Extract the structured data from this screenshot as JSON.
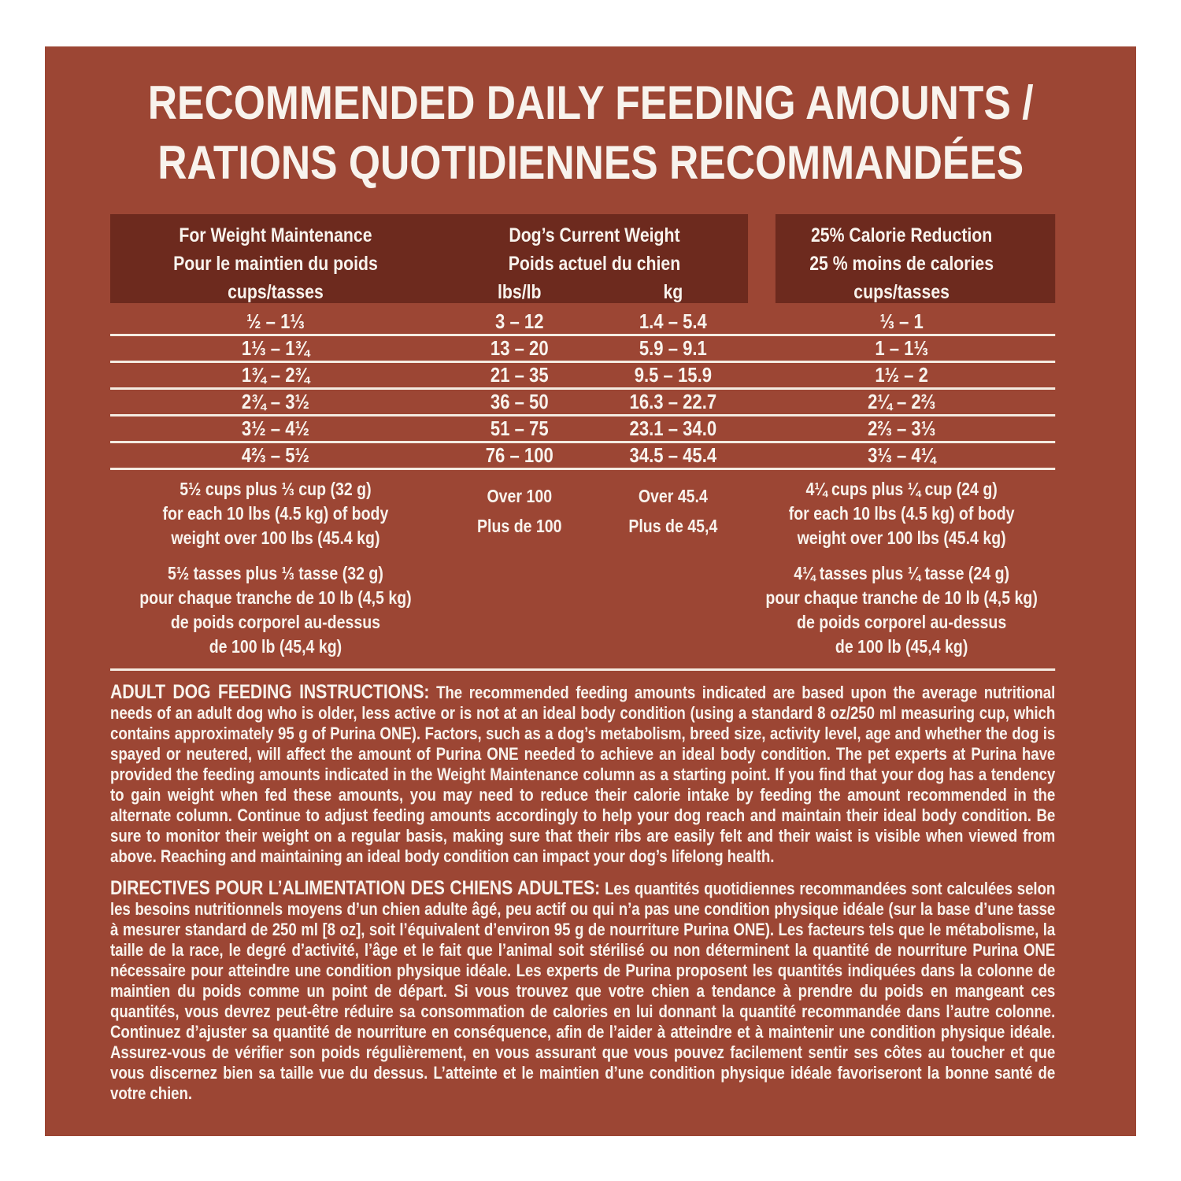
{
  "colors": {
    "page_bg": "#FFFFFF",
    "panel_bg": "#9C4634",
    "header_band_bg": "#6D2A1E",
    "rule_line": "#F4EBE1",
    "text": "#F8F3ED"
  },
  "title": {
    "line1": "RECOMMENDED DAILY FEEDING AMOUNTS /",
    "line2": "RATIONS QUOTIDIENNES RECOMMANDÉES"
  },
  "table": {
    "headers": {
      "maintenance": {
        "line1": "For Weight Maintenance",
        "line2": "Pour le maintien du poids",
        "line3": "cups/tasses"
      },
      "current_weight": {
        "line1": "Dog’s Current Weight",
        "line2": "Poids actuel du chien",
        "unit_lbs": "lbs/lb",
        "unit_kg": "kg"
      },
      "reduction": {
        "line1": "25% Calorie Reduction",
        "line2": "25 % moins de calories",
        "line3": "cups/tasses"
      }
    },
    "rows": [
      {
        "cups": "½ – 1⅓",
        "lbs": "3 – 12",
        "kg": "1.4 – 5.4",
        "cups_reduced": "⅓ – 1"
      },
      {
        "cups": "1⅓ – 1¾",
        "lbs": "13 – 20",
        "kg": "5.9 – 9.1",
        "cups_reduced": "1 – 1⅓"
      },
      {
        "cups": "1¾ – 2¾",
        "lbs": "21 – 35",
        "kg": "9.5 – 15.9",
        "cups_reduced": "1½ – 2"
      },
      {
        "cups": "2¾ – 3½",
        "lbs": "36 – 50",
        "kg": "16.3 – 22.7",
        "cups_reduced": "2¼ – 2⅔"
      },
      {
        "cups": "3½ – 4½",
        "lbs": "51 – 75",
        "kg": "23.1 – 34.0",
        "cups_reduced": "2⅔ – 3⅓"
      },
      {
        "cups": "4⅔ – 5½",
        "lbs": "76 – 100",
        "kg": "34.5 – 45.4",
        "cups_reduced": "3⅓ – 4¼"
      }
    ],
    "over_en": {
      "maintenance": {
        "l1": "5½ cups plus ⅓ cup (32 g)",
        "l2": "for each 10 lbs (4.5 kg) of body",
        "l3": "weight over 100 lbs (45.4 kg)"
      },
      "lbs": {
        "l1": "Over 100",
        "l2": "Plus de 100"
      },
      "kg": {
        "l1": "Over 45.4",
        "l2": "Plus de 45,4"
      },
      "reduction": {
        "l1": "4¼ cups plus ¼ cup (24 g)",
        "l2": "for each 10 lbs (4.5 kg) of body",
        "l3": "weight over 100 lbs (45.4 kg)"
      }
    },
    "over_fr": {
      "maintenance": {
        "l1": "5½ tasses plus ⅓ tasse (32 g)",
        "l2": "pour chaque tranche de 10 lb (4,5 kg)",
        "l3": "de poids corporel au-dessus",
        "l4": "de 100 lb (45,4 kg)"
      },
      "reduction": {
        "l1": "4¼ tasses plus ¼ tasse (24 g)",
        "l2": "pour chaque tranche de 10 lb (4,5 kg)",
        "l3": "de poids corporel au-dessus",
        "l4": "de 100 lb (45,4 kg)"
      }
    }
  },
  "instructions_en": {
    "heading": "ADULT DOG FEEDING INSTRUCTIONS:",
    "body": "The recommended feeding amounts indicated are based upon the average nutritional needs of an adult dog who is older, less active or is not at an ideal body condition (using a standard 8 oz/250 ml measuring cup, which contains approximately 95 g of Purina ONE). Factors, such as a dog’s metabolism, breed size, activity level, age and whether the dog is spayed or neutered, will affect the amount of Purina ONE needed to achieve an ideal body condition. The pet experts at Purina have provided the feeding amounts indicated in the Weight Maintenance column as a starting point. If you find that your dog has a tendency to gain weight when fed these amounts, you may need to reduce their calorie intake by feeding the amount recommended in the alternate column. Continue to adjust feeding amounts accordingly to help your dog reach and maintain their ideal body condition. Be sure to monitor their weight on a regular basis, making sure that their ribs are easily felt and their waist is visible when viewed from above. Reaching and maintaining an ideal body condition can impact your dog’s lifelong health."
  },
  "instructions_fr": {
    "heading": "DIRECTIVES POUR L’ALIMENTATION DES CHIENS ADULTES:",
    "body": "Les quantités quotidiennes recommandées sont calculées selon les besoins nutritionnels moyens d’un chien adulte âgé, peu actif ou qui n’a pas une condition physique idéale (sur la base d’une tasse à mesurer standard de 250 ml [8 oz], soit l’équivalent d’environ 95 g de nourriture Purina ONE). Les facteurs tels que le métabolisme, la taille de la race, le degré d’activité, l’âge et le fait que l’animal soit stérilisé ou non déterminent la quantité de nourriture Purina ONE nécessaire pour atteindre une condition physique idéale. Les experts de Purina proposent les quantités indiquées dans la colonne de maintien du poids comme un point de départ. Si vous trouvez que votre chien a tendance à prendre du poids en mangeant ces quantités, vous devrez peut-être réduire sa consommation de calories en lui donnant la quantité recommandée dans l’autre colonne. Continuez d’ajuster sa quantité de nourriture en conséquence, afin de l’aider à atteindre et à maintenir une condition physique idéale. Assurez-vous de vérifier son poids régulièrement, en vous assurant que vous pouvez facilement sentir ses côtes au toucher et que vous discernez bien sa taille vue du dessus. L’atteinte et le maintien d’une condition physique idéale favoriseront la bonne santé de votre chien."
  }
}
